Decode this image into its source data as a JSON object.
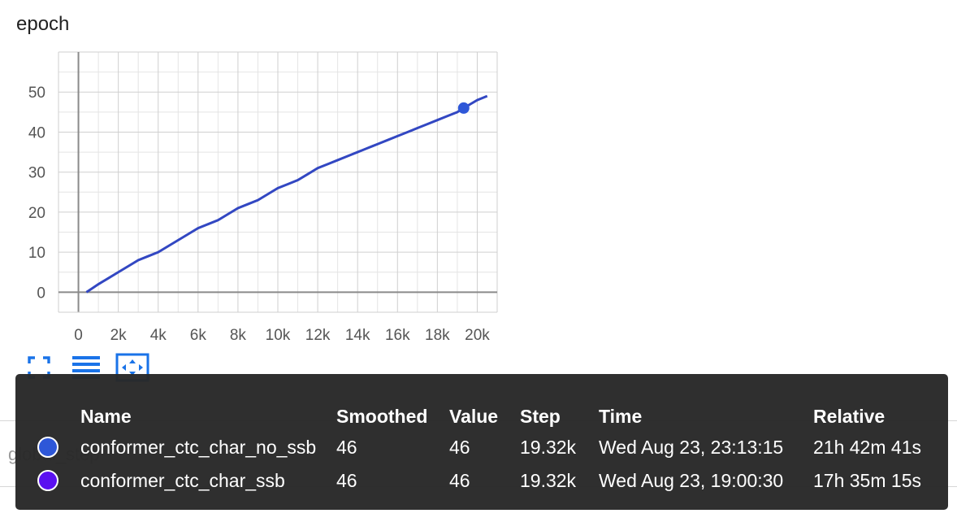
{
  "card": {
    "title": "epoch"
  },
  "background": {
    "next_card_label": "global_step"
  },
  "toolbar": [
    {
      "name": "fullscreen-icon",
      "color": "#1a73e8"
    },
    {
      "name": "data-table-icon",
      "color": "#1a73e8"
    },
    {
      "name": "fit-domain-icon",
      "color": "#1a73e8"
    }
  ],
  "chart_data": {
    "type": "line",
    "title": "epoch",
    "xlabel": "",
    "ylabel": "",
    "xlim": [
      -1000,
      21000
    ],
    "ylim": [
      -5,
      60
    ],
    "x_ticks": [
      "0",
      "2k",
      "4k",
      "6k",
      "8k",
      "10k",
      "12k",
      "14k",
      "16k",
      "18k",
      "20k"
    ],
    "x_tick_values": [
      0,
      2000,
      4000,
      6000,
      8000,
      10000,
      12000,
      14000,
      16000,
      18000,
      20000
    ],
    "y_ticks": [
      "0",
      "10",
      "20",
      "30",
      "40",
      "50"
    ],
    "y_tick_values": [
      0,
      10,
      20,
      30,
      40,
      50
    ],
    "grid": true,
    "series": [
      {
        "name": "conformer_ctc_char_no_ssb",
        "color": "#3247c2",
        "x": [
          400,
          1000,
          2000,
          3000,
          4000,
          5000,
          6000,
          7000,
          8000,
          9000,
          10000,
          11000,
          12000,
          13000,
          14000,
          14500,
          15000,
          16000,
          17000,
          18000,
          19000,
          19320,
          20000,
          20500
        ],
        "y": [
          0,
          2,
          5,
          8,
          10,
          13,
          16,
          18,
          21,
          23,
          26,
          28,
          31,
          33,
          35,
          36,
          37,
          39,
          41,
          43,
          45,
          46,
          48,
          49
        ]
      }
    ],
    "highlight": {
      "x": 19320,
      "y": 46
    }
  },
  "tooltip": {
    "headers": {
      "name": "Name",
      "smoothed": "Smoothed",
      "value": "Value",
      "step": "Step",
      "time": "Time",
      "relative": "Relative"
    },
    "rows": [
      {
        "color": "#2e57d8",
        "name": "conformer_ctc_char_no_ssb",
        "smoothed": "46",
        "value": "46",
        "step": "19.32k",
        "time": "Wed Aug 23, 23:13:15",
        "relative": "21h 42m 41s"
      },
      {
        "color": "#5a10f0",
        "name": "conformer_ctc_char_ssb",
        "smoothed": "46",
        "value": "46",
        "step": "19.32k",
        "time": "Wed Aug 23, 19:00:30",
        "relative": "17h 35m 15s"
      }
    ]
  }
}
